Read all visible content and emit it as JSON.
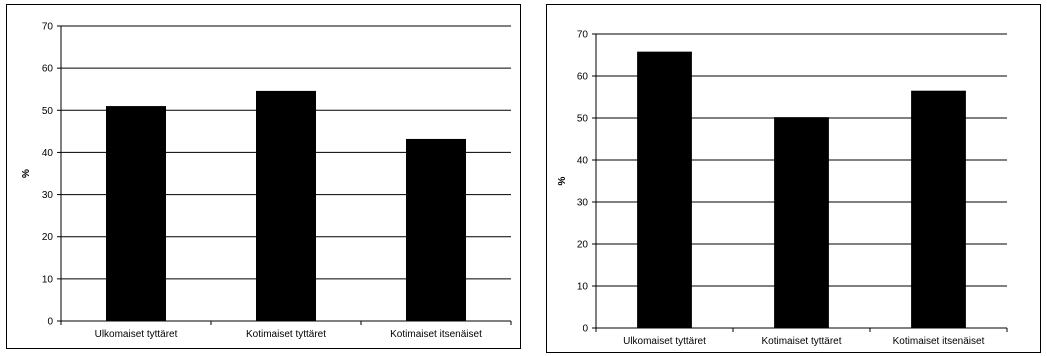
{
  "chart_data": [
    {
      "type": "bar",
      "categories": [
        "Ulkomaiset tyttäret",
        "Kotimaiset tyttäret",
        "Kotimaiset itsenäiset"
      ],
      "values": [
        51,
        54.6,
        43.2
      ],
      "title": "",
      "xlabel": "",
      "ylabel": "%",
      "ylim": [
        0,
        70
      ],
      "yticks": [
        0,
        10,
        20,
        30,
        40,
        50,
        60,
        70
      ],
      "grid": true,
      "bar_color": "#000000"
    },
    {
      "type": "bar",
      "categories": [
        "Ulkomaiset tyttäret",
        "Kotimaiset tyttäret",
        "Kotimaiset itsenäiset"
      ],
      "values": [
        65.8,
        50.2,
        56.5
      ],
      "title": "",
      "xlabel": "",
      "ylabel": "%",
      "ylim": [
        0,
        70
      ],
      "yticks": [
        0,
        10,
        20,
        30,
        40,
        50,
        60,
        70
      ],
      "grid": true,
      "bar_color": "#000000"
    }
  ]
}
